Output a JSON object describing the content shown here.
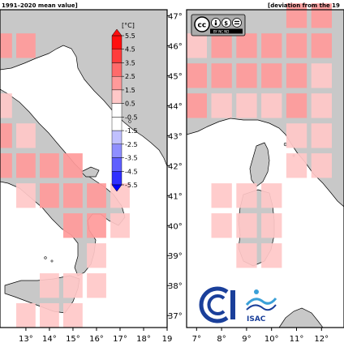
{
  "left_panel": {
    "header": "1991–2020 mean value]",
    "x_ticks": [
      "13°",
      "14°",
      "15°",
      "16°",
      "17°",
      "18°",
      "19"
    ],
    "y_ticks": [
      "47°",
      "46°",
      "45°",
      "44°",
      "43°",
      "42°",
      "41°",
      "40°",
      "39°",
      "38°",
      "37°"
    ]
  },
  "right_panel": {
    "header": "[deviation from the 19",
    "x_ticks": [
      "7°",
      "8°",
      "9°",
      "10°",
      "11°",
      "12°"
    ],
    "license_badge": {
      "text": "BY NC ND"
    }
  },
  "colorbar": {
    "unit": "[°C]",
    "labels": [
      "5.5",
      "4.5",
      "3.5",
      "2.5",
      "1.5",
      "0.5",
      "-0.5",
      "-1.5",
      "-2.5",
      "-3.5",
      "-4.5",
      "-5.5"
    ]
  },
  "logo": {
    "text": "ISAC"
  },
  "colors": {
    "land": "#c8c8c8",
    "sea": "#ffffff",
    "anomaly_scale": [
      "#0000ff",
      "#2f2fff",
      "#5f5fff",
      "#8f8fff",
      "#c0c0ff",
      "#ffffff",
      "#ffffff",
      "#ffc8c8",
      "#ff9a9a",
      "#ff6b6b",
      "#ff3d3d",
      "#ff0f0f"
    ],
    "logo_blue": "#1a3f9a"
  },
  "chart_data": {
    "type": "heatmap",
    "title": "",
    "xlabel": "",
    "ylabel": "",
    "unit": "°C",
    "color_scale_range": [
      -5.5,
      5.5
    ],
    "panels": [
      {
        "name": "left",
        "xlim": [
          11.9,
          19.0
        ],
        "ylim": [
          36.6,
          47.2
        ],
        "cells": [
          {
            "lon": 12,
            "lat": 46,
            "value": 2.3
          },
          {
            "lon": 13,
            "lat": 46,
            "value": 2.4
          },
          {
            "lon": 12,
            "lat": 44,
            "value": 1.7
          },
          {
            "lon": 12,
            "lat": 43,
            "value": 1.9
          },
          {
            "lon": 13,
            "lat": 43,
            "value": 1.6
          },
          {
            "lon": 12,
            "lat": 42,
            "value": 2.1
          },
          {
            "lon": 13,
            "lat": 42,
            "value": 2.2
          },
          {
            "lon": 14,
            "lat": 42,
            "value": 2.0
          },
          {
            "lon": 15,
            "lat": 42,
            "value": 1.9
          },
          {
            "lon": 13,
            "lat": 41,
            "value": 1.6
          },
          {
            "lon": 14,
            "lat": 41,
            "value": 1.9
          },
          {
            "lon": 15,
            "lat": 41,
            "value": 2.4
          },
          {
            "lon": 16,
            "lat": 41,
            "value": 2.0
          },
          {
            "lon": 17,
            "lat": 41,
            "value": 1.7
          },
          {
            "lon": 15,
            "lat": 40,
            "value": 2.2
          },
          {
            "lon": 16,
            "lat": 40,
            "value": 2.0
          },
          {
            "lon": 17,
            "lat": 40,
            "value": 1.8
          },
          {
            "lon": 16,
            "lat": 39,
            "value": 1.6
          },
          {
            "lon": 14,
            "lat": 38,
            "value": 1.2
          },
          {
            "lon": 15,
            "lat": 38,
            "value": 1.0
          },
          {
            "lon": 16,
            "lat": 38,
            "value": 1.2
          },
          {
            "lon": 13,
            "lat": 37,
            "value": 1.0
          },
          {
            "lon": 14,
            "lat": 37,
            "value": 1.1
          },
          {
            "lon": 15,
            "lat": 37,
            "value": 1.2
          }
        ]
      },
      {
        "name": "right",
        "xlim": [
          6.6,
          12.9
        ],
        "ylim": [
          36.6,
          47.2
        ],
        "cells": [
          {
            "lon": 11,
            "lat": 47,
            "value": 2.2
          },
          {
            "lon": 12,
            "lat": 47,
            "value": 2.0
          },
          {
            "lon": 7,
            "lat": 46,
            "value": 1.8
          },
          {
            "lon": 8,
            "lat": 46,
            "value": 2.0
          },
          {
            "lon": 9,
            "lat": 46,
            "value": 1.9
          },
          {
            "lon": 10,
            "lat": 46,
            "value": 2.0
          },
          {
            "lon": 11,
            "lat": 46,
            "value": 2.3
          },
          {
            "lon": 12,
            "lat": 46,
            "value": 2.1
          },
          {
            "lon": 7,
            "lat": 45,
            "value": 2.1
          },
          {
            "lon": 8,
            "lat": 45,
            "value": 1.9
          },
          {
            "lon": 9,
            "lat": 45,
            "value": 2.0
          },
          {
            "lon": 10,
            "lat": 45,
            "value": 2.3
          },
          {
            "lon": 11,
            "lat": 45,
            "value": 1.9
          },
          {
            "lon": 12,
            "lat": 45,
            "value": 1.8
          },
          {
            "lon": 7,
            "lat": 44,
            "value": 1.9
          },
          {
            "lon": 8,
            "lat": 44,
            "value": 1.8
          },
          {
            "lon": 9,
            "lat": 44,
            "value": 1.7
          },
          {
            "lon": 10,
            "lat": 44,
            "value": 1.8
          },
          {
            "lon": 11,
            "lat": 44,
            "value": 1.9
          },
          {
            "lon": 12,
            "lat": 44,
            "value": 1.7
          },
          {
            "lon": 11,
            "lat": 43,
            "value": 1.8
          },
          {
            "lon": 12,
            "lat": 43,
            "value": 1.6
          },
          {
            "lon": 11,
            "lat": 42,
            "value": 1.7
          },
          {
            "lon": 12,
            "lat": 42,
            "value": 1.8
          },
          {
            "lon": 8,
            "lat": 41,
            "value": 1.0
          },
          {
            "lon": 9,
            "lat": 41,
            "value": 1.3
          },
          {
            "lon": 10,
            "lat": 41,
            "value": 1.2
          },
          {
            "lon": 8,
            "lat": 40,
            "value": 1.1
          },
          {
            "lon": 9,
            "lat": 40,
            "value": 1.2
          },
          {
            "lon": 10,
            "lat": 40,
            "value": 1.3
          },
          {
            "lon": 9,
            "lat": 39,
            "value": 1.2
          },
          {
            "lon": 10,
            "lat": 39,
            "value": 1.1
          }
        ]
      }
    ]
  }
}
